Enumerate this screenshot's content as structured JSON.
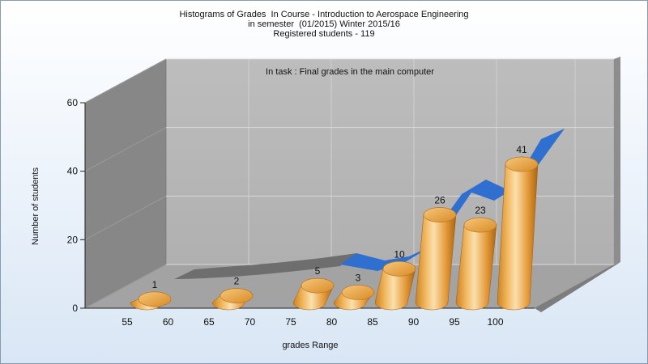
{
  "header": {
    "title_line1": "Histograms of Grades  In Course - Introduction to Aerospace Engineering",
    "title_line2": "in semester  (01/2015) Winter 2015/16",
    "title_line3": "Registered students - 119"
  },
  "chart_data": {
    "type": "bar",
    "subtitle": "In task : Final grades in the main computer",
    "xlabel": "grades Range",
    "ylabel": "Number of students",
    "ylim": [
      0,
      60
    ],
    "yticks": [
      "0",
      "20",
      "40",
      "60"
    ],
    "xticks": [
      "55",
      "60",
      "65",
      "70",
      "75",
      "80",
      "85",
      "90",
      "95",
      "100"
    ],
    "categories": [
      "55-60",
      "65-70",
      "75-80",
      "80-85",
      "85-90",
      "90-95",
      "95-100",
      "100"
    ],
    "values": [
      1,
      2,
      5,
      3,
      10,
      26,
      23,
      41
    ],
    "labels": [
      "1",
      "2",
      "5",
      "3",
      "10",
      "26",
      "23",
      "41"
    ],
    "grid": true,
    "style": "3d-cylinder",
    "colors": {
      "bar_light": "#fbe0ad",
      "bar_mid": "#eda64b",
      "bar_dark": "#b56f18",
      "area_gray": "#6e6e6e",
      "area_blue": "#2f6fd0",
      "back_wall": "#b7b7b7",
      "side_wall": "#878787",
      "floor": "#a3a3a3"
    }
  }
}
